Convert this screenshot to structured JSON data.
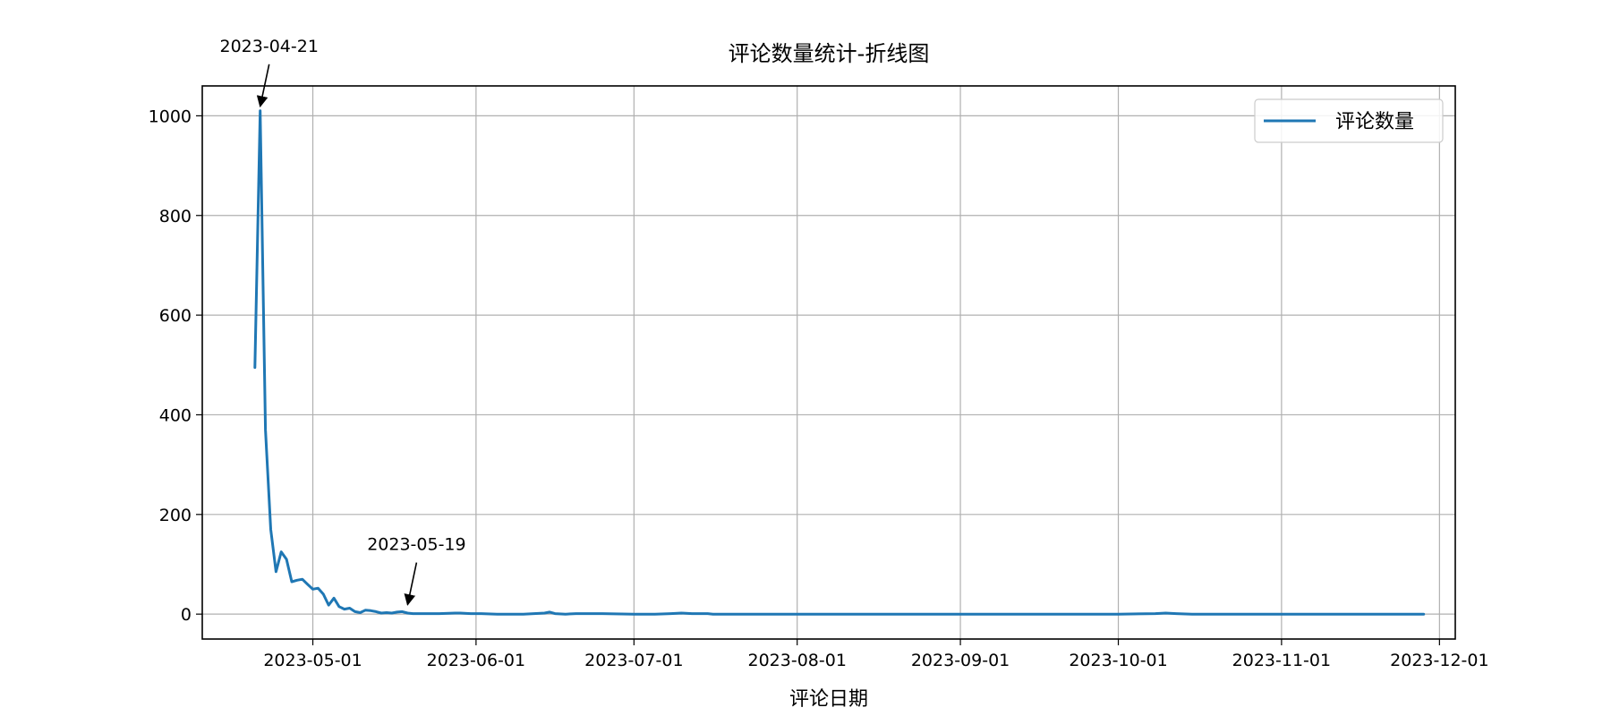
{
  "chart_data": {
    "type": "line",
    "title": "评论数量统计-折线图",
    "xlabel": "评论日期",
    "ylabel": "",
    "x_axis_type": "date",
    "xlim": [
      "2023-04-10",
      "2023-12-04"
    ],
    "ylim": [
      -50,
      1060
    ],
    "x_ticks": [
      "2023-05-01",
      "2023-06-01",
      "2023-07-01",
      "2023-08-01",
      "2023-09-01",
      "2023-10-01",
      "2023-11-01",
      "2023-12-01"
    ],
    "y_ticks": [
      0,
      200,
      400,
      600,
      800,
      1000
    ],
    "grid": true,
    "legend_position": "upper right",
    "colors": {
      "line": "#1f77b4",
      "grid": "#b0b0b0",
      "axes": "#000000"
    },
    "annotations": [
      {
        "date": "2023-04-21",
        "value": 1010,
        "text": "2023-04-21"
      },
      {
        "date": "2023-05-19",
        "value": 10,
        "text": "2023-05-19"
      }
    ],
    "series": [
      {
        "name": "评论数量",
        "points": [
          [
            "2023-04-20",
            495
          ],
          [
            "2023-04-21",
            1010
          ],
          [
            "2023-04-22",
            370
          ],
          [
            "2023-04-23",
            170
          ],
          [
            "2023-04-24",
            85
          ],
          [
            "2023-04-25",
            125
          ],
          [
            "2023-04-26",
            110
          ],
          [
            "2023-04-27",
            65
          ],
          [
            "2023-04-28",
            68
          ],
          [
            "2023-04-29",
            70
          ],
          [
            "2023-04-30",
            60
          ],
          [
            "2023-05-01",
            50
          ],
          [
            "2023-05-02",
            52
          ],
          [
            "2023-05-03",
            40
          ],
          [
            "2023-05-04",
            18
          ],
          [
            "2023-05-05",
            32
          ],
          [
            "2023-05-06",
            15
          ],
          [
            "2023-05-07",
            10
          ],
          [
            "2023-05-08",
            12
          ],
          [
            "2023-05-09",
            5
          ],
          [
            "2023-05-10",
            3
          ],
          [
            "2023-05-11",
            8
          ],
          [
            "2023-05-12",
            7
          ],
          [
            "2023-05-13",
            5
          ],
          [
            "2023-05-14",
            2
          ],
          [
            "2023-05-15",
            3
          ],
          [
            "2023-05-16",
            2
          ],
          [
            "2023-05-17",
            4
          ],
          [
            "2023-05-18",
            5
          ],
          [
            "2023-05-19",
            2
          ],
          [
            "2023-05-20",
            1
          ],
          [
            "2023-05-22",
            1
          ],
          [
            "2023-05-25",
            1
          ],
          [
            "2023-05-28",
            2
          ],
          [
            "2023-05-29",
            2
          ],
          [
            "2023-05-31",
            1
          ],
          [
            "2023-06-02",
            1
          ],
          [
            "2023-06-05",
            0
          ],
          [
            "2023-06-10",
            0
          ],
          [
            "2023-06-12",
            1
          ],
          [
            "2023-06-14",
            2
          ],
          [
            "2023-06-15",
            4
          ],
          [
            "2023-06-16",
            1
          ],
          [
            "2023-06-18",
            0
          ],
          [
            "2023-06-20",
            1
          ],
          [
            "2023-06-25",
            1
          ],
          [
            "2023-07-01",
            0
          ],
          [
            "2023-07-05",
            0
          ],
          [
            "2023-07-08",
            1
          ],
          [
            "2023-07-10",
            2
          ],
          [
            "2023-07-12",
            1
          ],
          [
            "2023-07-15",
            1
          ],
          [
            "2023-07-16",
            0
          ],
          [
            "2023-08-01",
            0
          ],
          [
            "2023-08-15",
            0
          ],
          [
            "2023-09-01",
            0
          ],
          [
            "2023-09-15",
            0
          ],
          [
            "2023-10-01",
            0
          ],
          [
            "2023-10-08",
            1
          ],
          [
            "2023-10-10",
            2
          ],
          [
            "2023-10-12",
            1
          ],
          [
            "2023-10-15",
            0
          ],
          [
            "2023-11-01",
            0
          ],
          [
            "2023-11-15",
            0
          ],
          [
            "2023-11-28",
            0
          ]
        ]
      }
    ]
  }
}
